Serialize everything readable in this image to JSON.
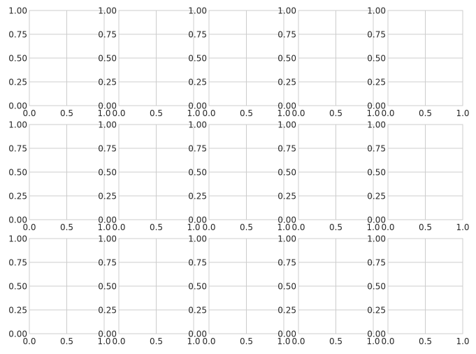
{
  "chart_data": {
    "type": "scatter",
    "grid_rows": 3,
    "grid_cols": 5,
    "xlim": [
      0,
      1
    ],
    "ylim": [
      0,
      1
    ],
    "x_ticks": [
      "0.0",
      "0.5",
      "1.0"
    ],
    "y_ticks": [
      "0.00",
      "0.25",
      "0.50",
      "0.75",
      "1.00"
    ],
    "grid": true,
    "series": [],
    "colors": {
      "grid": "#cccccc",
      "tick_text": "#262626",
      "background": "#ffffff"
    }
  }
}
